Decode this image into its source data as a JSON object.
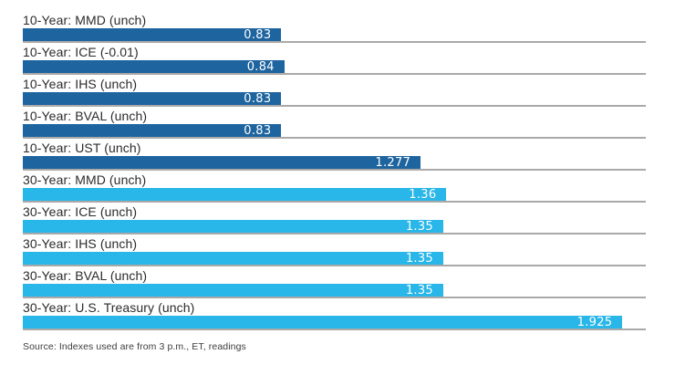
{
  "chart_data": {
    "type": "bar",
    "orientation": "horizontal",
    "title": "",
    "xlabel": "",
    "ylabel": "",
    "xlim": [
      0,
      2.0
    ],
    "grid": "baseline-per-bar",
    "legend": "none",
    "colors": {
      "ten_year": "#1e649f",
      "thirty_year": "#29b6e8"
    },
    "baseline_color": "#a9a9a9",
    "value_label_color": "#ffffff",
    "bars": [
      {
        "label": "10-Year: MMD (unch)",
        "value": 0.83,
        "value_label": "0.83",
        "group": "ten_year"
      },
      {
        "label": "10-Year: ICE (-0.01)",
        "value": 0.84,
        "value_label": "0.84",
        "group": "ten_year"
      },
      {
        "label": "10-Year: IHS (unch)",
        "value": 0.83,
        "value_label": "0.83",
        "group": "ten_year"
      },
      {
        "label": "10-Year: BVAL (unch)",
        "value": 0.83,
        "value_label": "0.83",
        "group": "ten_year"
      },
      {
        "label": "10-Year: UST (unch)",
        "value": 1.277,
        "value_label": "1.277",
        "group": "ten_year"
      },
      {
        "label": "30-Year: MMD (unch)",
        "value": 1.36,
        "value_label": "1.36",
        "group": "thirty_year"
      },
      {
        "label": "30-Year: ICE (unch)",
        "value": 1.35,
        "value_label": "1.35",
        "group": "thirty_year"
      },
      {
        "label": "30-Year: IHS (unch)",
        "value": 1.35,
        "value_label": "1.35",
        "group": "thirty_year"
      },
      {
        "label": "30-Year: BVAL (unch)",
        "value": 1.35,
        "value_label": "1.35",
        "group": "thirty_year"
      },
      {
        "label": "30-Year: U.S. Treasury (unch)",
        "value": 1.925,
        "value_label": "1.925",
        "group": "thirty_year"
      }
    ]
  },
  "source": "Source: Indexes used are from 3 p.m., ET, readings"
}
